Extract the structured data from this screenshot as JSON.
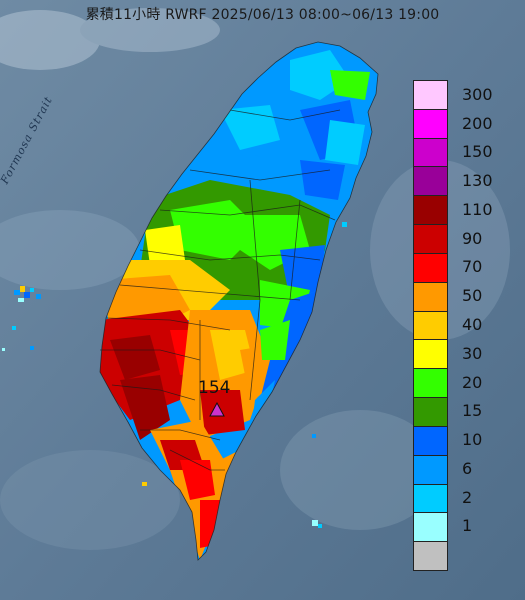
{
  "title": "累積11小時 RWRF 2025/06/13 08:00~06/13 19:00",
  "strait_label": "Formosa Strait",
  "max_marker": {
    "value": "154",
    "color": "#cc33cc"
  },
  "legend": [
    {
      "label": "300",
      "color": "#ffc8ff"
    },
    {
      "label": "200",
      "color": "#ff00ff"
    },
    {
      "label": "150",
      "color": "#cc00cc"
    },
    {
      "label": "130",
      "color": "#990099"
    },
    {
      "label": "110",
      "color": "#990000"
    },
    {
      "label": "90",
      "color": "#cc0000"
    },
    {
      "label": "70",
      "color": "#ff0000"
    },
    {
      "label": "50",
      "color": "#ff9900"
    },
    {
      "label": "40",
      "color": "#ffcc00"
    },
    {
      "label": "30",
      "color": "#ffff00"
    },
    {
      "label": "20",
      "color": "#33ff00"
    },
    {
      "label": "15",
      "color": "#339900"
    },
    {
      "label": "10",
      "color": "#0066ff"
    },
    {
      "label": "6",
      "color": "#0099ff"
    },
    {
      "label": "2",
      "color": "#00ccff"
    },
    {
      "label": "1",
      "color": "#99ffff"
    },
    {
      "label": "",
      "color": "#c0c0c0"
    }
  ]
}
